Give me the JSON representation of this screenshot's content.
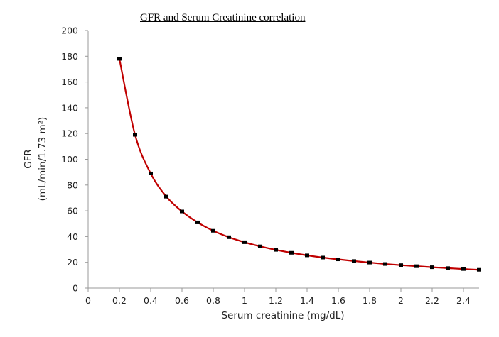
{
  "chart_data": {
    "type": "line",
    "title": "GFR and Serum Creatinine correlation",
    "xlabel": "Serum creatinine (mg/dL)",
    "ylabel_line1": "GFR",
    "ylabel_line2": "(mL/min/1.73 m²)",
    "xlim": [
      0,
      2.5
    ],
    "ylim": [
      0,
      200
    ],
    "xticks": [
      "0",
      "0.2",
      "0.4",
      "0.6",
      "0.8",
      "1",
      "1.2",
      "1.4",
      "1.6",
      "1.8",
      "2",
      "2.2",
      "2.4"
    ],
    "yticks": [
      "0",
      "20",
      "40",
      "60",
      "80",
      "100",
      "120",
      "140",
      "160",
      "180",
      "200"
    ],
    "grid": false,
    "legend": "none",
    "series": [
      {
        "name": "GFR",
        "color": "#c00000",
        "marker_color": "#000000",
        "x": [
          0.2,
          0.3,
          0.4,
          0.5,
          0.6,
          0.7,
          0.8,
          0.9,
          1.0,
          1.1,
          1.2,
          1.3,
          1.4,
          1.5,
          1.6,
          1.7,
          1.8,
          1.9,
          2.0,
          2.1,
          2.2,
          2.3,
          2.4,
          2.5
        ],
        "y": [
          178,
          119,
          89,
          71,
          59.5,
          51,
          44.5,
          39.5,
          35.6,
          32.4,
          29.7,
          27.4,
          25.4,
          23.7,
          22.3,
          21,
          19.8,
          18.7,
          17.8,
          17,
          16.2,
          15.5,
          14.8,
          14.2
        ]
      }
    ]
  }
}
